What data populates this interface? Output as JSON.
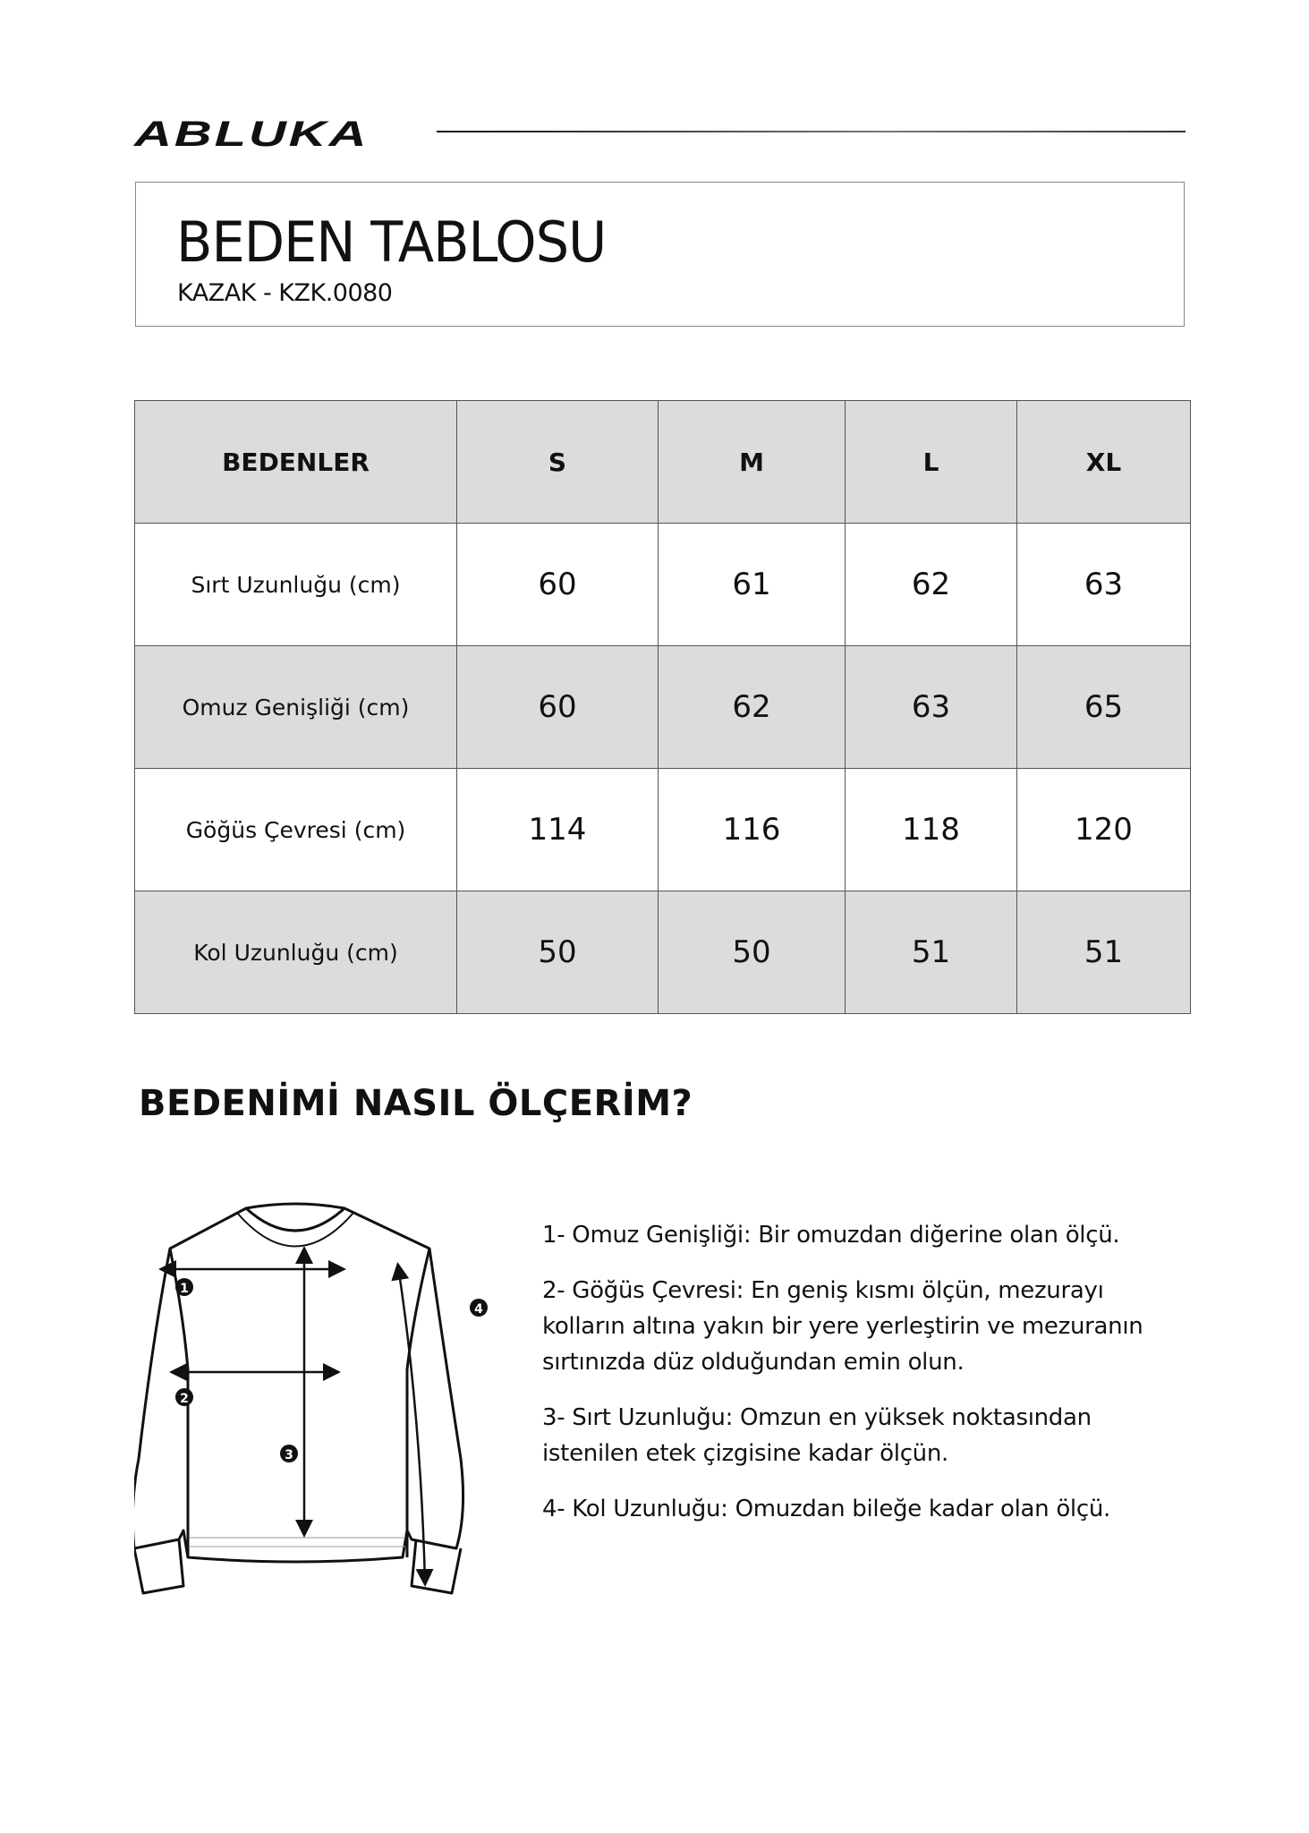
{
  "brand": {
    "logo_text": "ABLUKA"
  },
  "header": {
    "title": "BEDEN TABLOSU",
    "subtitle": "KAZAK - KZK.0080"
  },
  "table": {
    "columns": [
      "BEDENLER",
      "S",
      "M",
      "L",
      "XL"
    ],
    "rows": [
      {
        "label": "Sırt Uzunluğu (cm)",
        "values": [
          "60",
          "61",
          "62",
          "63"
        ]
      },
      {
        "label": "Omuz Genişliği (cm)",
        "values": [
          "60",
          "62",
          "63",
          "65"
        ]
      },
      {
        "label": "Göğüs Çevresi (cm)",
        "values": [
          "114",
          "116",
          "118",
          "120"
        ]
      },
      {
        "label": "Kol Uzunluğu (cm)",
        "values": [
          "50",
          "50",
          "51",
          "51"
        ]
      }
    ],
    "stripe_color": "#dcdcdc"
  },
  "howto": {
    "title": "BEDENİMİ NASIL ÖLÇERİM?",
    "markers": [
      "1",
      "2",
      "3",
      "4"
    ],
    "steps": [
      "1- Omuz Genişliği: Bir omuzdan diğerine olan ölçü.",
      "2- Göğüs Çevresi: En geniş kısmı ölçün, mezurayı kolların altına yakın bir yere yerleştirin ve mezuranın sırtınızda düz olduğundan emin olun.",
      "3- Sırt Uzunluğu: Omzun en yüksek noktasından istenilen etek çizgisine kadar ölçün.",
      "4- Kol Uzunluğu: Omuzdan bileğe kadar olan ölçü."
    ]
  }
}
